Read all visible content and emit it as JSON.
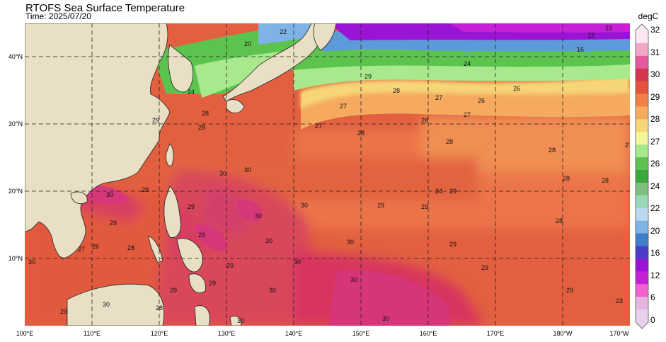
{
  "header": {
    "title": "RTOFS Sea Surface Temperature",
    "time_label": "Time: 2025/07/20"
  },
  "map": {
    "lat_labels": [
      "40°N",
      "30°N",
      "20°N",
      "10°N"
    ],
    "lon_labels": [
      "100°E",
      "110°E",
      "120°E",
      "130°E",
      "140°E",
      "150°E",
      "160°E",
      "170°E",
      "180°W",
      "170°W"
    ],
    "land_color": "#e8dfc4",
    "coastline_color": "#222222",
    "graticule_style": "dashed"
  },
  "colorbar": {
    "unit": "degC",
    "tick_labels": [
      "32",
      "31",
      "30",
      "29",
      "28",
      "27",
      "26",
      "24",
      "22",
      "20",
      "16",
      "12",
      "6",
      "0"
    ],
    "colors": [
      "#fde5f2",
      "#f2a7c7",
      "#e55a9c",
      "#d6374f",
      "#e4543c",
      "#f27f47",
      "#f5aa5f",
      "#f7d677",
      "#f4f69a",
      "#a7e98c",
      "#5cc44e",
      "#3aa83a",
      "#7fbf7d",
      "#98d8b6",
      "#b9d9f2",
      "#7fb2e6",
      "#3f7fca",
      "#4b3cc9",
      "#9b14d6",
      "#c521d7",
      "#f062cf",
      "#e6b4e1",
      "#e6d0ec"
    ]
  },
  "contour_labels": [
    "29",
    "28",
    "27",
    "30",
    "26",
    "24",
    "22",
    "20",
    "16",
    "12",
    "23"
  ]
}
